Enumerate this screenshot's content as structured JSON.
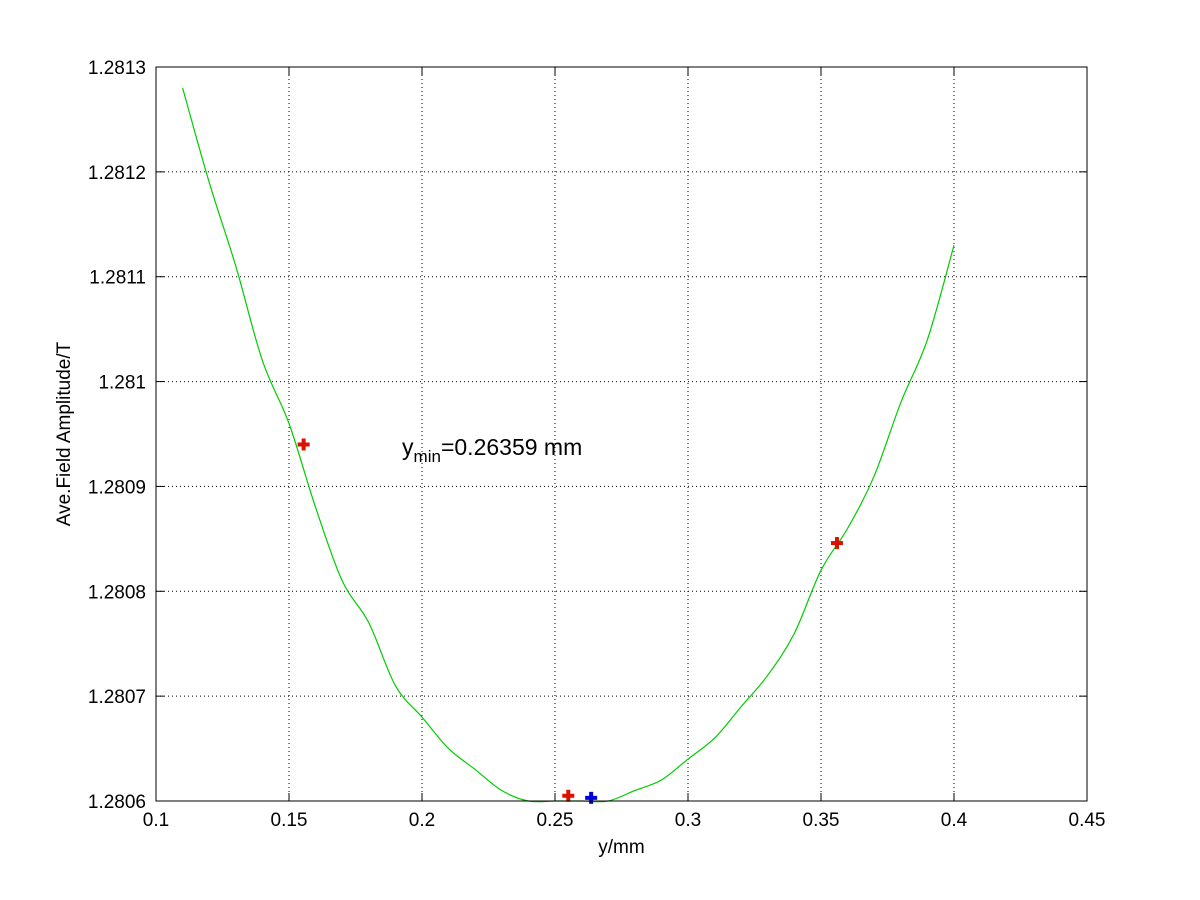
{
  "chart_data": {
    "type": "line",
    "title": "",
    "xlabel": "y/mm",
    "ylabel": "Ave.Field Amplitude/T",
    "xlim": [
      0.1,
      0.45
    ],
    "ylim": [
      1.2806,
      1.2813
    ],
    "grid": true,
    "x_ticks": [
      "0.1",
      "0.15",
      "0.2",
      "0.25",
      "0.3",
      "0.35",
      "0.4",
      "0.45"
    ],
    "y_ticks": [
      "1.2806",
      "1.2807",
      "1.2808",
      "1.2809",
      "1.281",
      "1.2811",
      "1.2812",
      "1.2813"
    ],
    "series": [
      {
        "style": "line",
        "color": "#00cc00",
        "x": [
          0.11,
          0.12,
          0.13,
          0.14,
          0.15,
          0.16,
          0.17,
          0.18,
          0.19,
          0.2,
          0.21,
          0.22,
          0.23,
          0.24,
          0.25,
          0.26,
          0.27,
          0.28,
          0.29,
          0.3,
          0.31,
          0.32,
          0.33,
          0.34,
          0.35,
          0.36,
          0.37,
          0.38,
          0.39,
          0.4
        ],
        "y": [
          1.28128,
          1.28119,
          1.28111,
          1.28102,
          1.28096,
          1.28088,
          1.28081,
          1.28077,
          1.28071,
          1.28068,
          1.28065,
          1.28063,
          1.28061,
          1.2806,
          1.2806,
          1.2806,
          1.2806,
          1.28061,
          1.28062,
          1.28064,
          1.28066,
          1.28069,
          1.28072,
          1.28076,
          1.28082,
          1.28086,
          1.28091,
          1.28098,
          1.28104,
          1.28113
        ]
      },
      {
        "style": "markers",
        "marker": "plus",
        "color": "#dd1100",
        "x": [
          0.1555,
          0.255,
          0.356
        ],
        "y": [
          1.28094,
          1.280605,
          1.280846
        ]
      },
      {
        "style": "markers",
        "marker": "plus",
        "color": "#0000dd",
        "x": [
          0.26359
        ],
        "y": [
          1.280603
        ]
      }
    ],
    "annotations": [
      {
        "base": "y",
        "sub": "min",
        "rest": "=0.26359 mm",
        "x": 0.1925,
        "y": 1.28093
      }
    ]
  }
}
